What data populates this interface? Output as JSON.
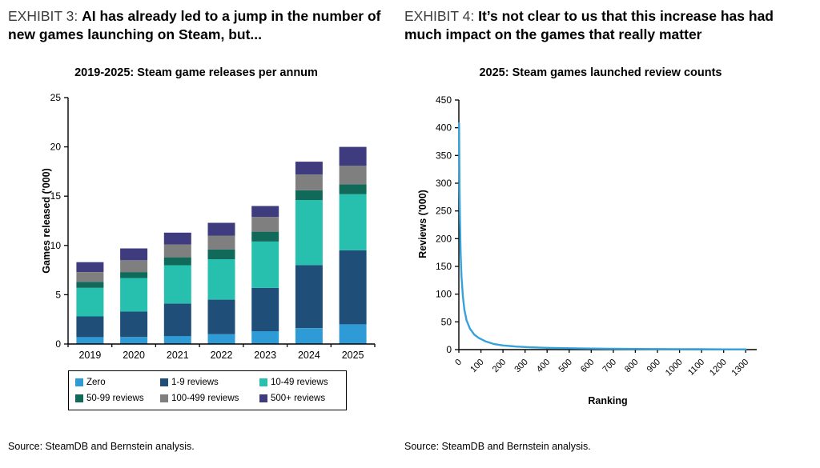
{
  "left": {
    "exhibit_label": "EXHIBIT 3:",
    "exhibit_title": "AI has already led to a jump in the number of new games launching on Steam, but...",
    "source": "Source: SteamDB and Bernstein analysis."
  },
  "right": {
    "exhibit_label": "EXHIBIT 4:",
    "exhibit_title": "It’s not clear to us that this increase has had much impact on the games that really matter",
    "source": "Source: SteamDB and Bernstein analysis."
  },
  "chart_data": [
    {
      "type": "bar",
      "stacked": true,
      "title": "2019-2025: Steam game releases per annum",
      "ylabel": "Games released ('000)",
      "xlabel": "",
      "ylim": [
        0,
        25
      ],
      "yticks": [
        0,
        5,
        10,
        15,
        20,
        25
      ],
      "legend_position": "bottom-box",
      "grid": false,
      "categories": [
        "2019",
        "2020",
        "2021",
        "2022",
        "2023",
        "2024",
        "2025"
      ],
      "series": [
        {
          "name": "Zero",
          "color": "#2E9BD6",
          "values": [
            0.7,
            0.7,
            0.8,
            1.0,
            1.3,
            1.6,
            2.0
          ]
        },
        {
          "name": "1-9 reviews",
          "color": "#1F4E79",
          "values": [
            2.1,
            2.6,
            3.3,
            3.5,
            4.4,
            6.4,
            7.5
          ]
        },
        {
          "name": "10-49 reviews",
          "color": "#27BFAD",
          "values": [
            2.9,
            3.4,
            3.9,
            4.1,
            4.7,
            6.6,
            5.7
          ]
        },
        {
          "name": "50-99 reviews",
          "color": "#11695A",
          "values": [
            0.6,
            0.6,
            0.8,
            1.0,
            1.0,
            1.0,
            1.0
          ]
        },
        {
          "name": "100-499 reviews",
          "color": "#7F7F7F",
          "values": [
            1.0,
            1.2,
            1.3,
            1.4,
            1.5,
            1.6,
            1.9
          ]
        },
        {
          "name": "500+ reviews",
          "color": "#3E3C7E",
          "values": [
            1.0,
            1.2,
            1.2,
            1.3,
            1.1,
            1.3,
            1.9
          ]
        }
      ],
      "totals": [
        8.3,
        9.7,
        11.3,
        12.3,
        14.0,
        18.5,
        20.0
      ]
    },
    {
      "type": "line",
      "title": "2025: Steam games launched review counts",
      "xlabel": "Ranking",
      "ylabel": "Reviews ('000)",
      "ylim": [
        0,
        450
      ],
      "xlim": [
        0,
        1350
      ],
      "yticks": [
        0,
        50,
        100,
        150,
        200,
        250,
        300,
        350,
        400,
        450
      ],
      "xticks": [
        0,
        100,
        200,
        300,
        400,
        500,
        600,
        700,
        800,
        900,
        1000,
        1100,
        1200,
        1300
      ],
      "color": "#36A2DB",
      "grid": false,
      "points": [
        [
          1,
          408
        ],
        [
          3,
          300
        ],
        [
          5,
          235
        ],
        [
          8,
          175
        ],
        [
          12,
          132
        ],
        [
          18,
          97
        ],
        [
          25,
          72
        ],
        [
          35,
          53
        ],
        [
          50,
          38
        ],
        [
          70,
          27
        ],
        [
          90,
          21
        ],
        [
          120,
          15
        ],
        [
          160,
          10
        ],
        [
          200,
          7.5
        ],
        [
          260,
          5.5
        ],
        [
          320,
          4.2
        ],
        [
          400,
          3.2
        ],
        [
          500,
          2.4
        ],
        [
          600,
          1.9
        ],
        [
          700,
          1.5
        ],
        [
          800,
          1.2
        ],
        [
          900,
          1.0
        ],
        [
          1000,
          0.8
        ],
        [
          1100,
          0.7
        ],
        [
          1200,
          0.5
        ],
        [
          1300,
          0.4
        ]
      ]
    }
  ]
}
